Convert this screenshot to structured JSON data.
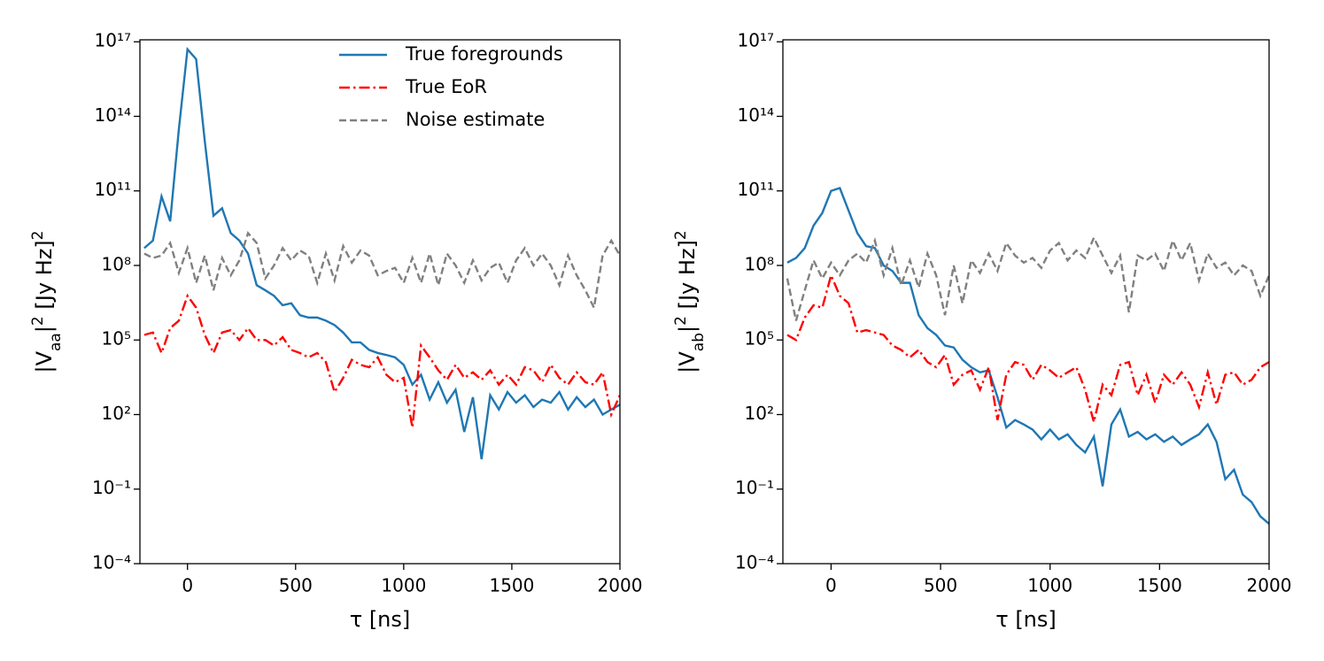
{
  "chart_data": [
    {
      "type": "line",
      "log_y": true,
      "legend": "upper right",
      "xlabel": "τ [ns]",
      "ylabel": [
        {
          "text": "|V"
        },
        {
          "sub": "aa"
        },
        {
          "text": "|"
        },
        {
          "sup": "2"
        },
        {
          "text": " [Jy Hz]"
        },
        {
          "sup": "2"
        }
      ],
      "xlim": [
        -220,
        2000
      ],
      "xticks": [
        0,
        500,
        1000,
        1500,
        2000
      ],
      "ylim": [
        0.0001,
        1.2e+17
      ],
      "yticks": [
        {
          "value": 0.0001,
          "label": "10⁻⁴"
        },
        {
          "value": 0.1,
          "label": "10⁻¹"
        },
        {
          "value": 100,
          "label": "10²"
        },
        {
          "value": 100000,
          "label": "10⁵"
        },
        {
          "value": 100000000.0,
          "label": "10⁸"
        },
        {
          "value": 100000000000.0,
          "label": "10¹¹"
        },
        {
          "value": 100000000000000.0,
          "label": "10¹⁴"
        },
        {
          "value": 1e+17,
          "label": "10¹⁷"
        }
      ],
      "x": [
        -200,
        -160,
        -120,
        -80,
        -40,
        0,
        40,
        80,
        120,
        160,
        200,
        240,
        280,
        320,
        360,
        400,
        440,
        480,
        520,
        560,
        600,
        640,
        680,
        720,
        760,
        800,
        840,
        880,
        920,
        960,
        1000,
        1040,
        1080,
        1120,
        1160,
        1200,
        1240,
        1280,
        1320,
        1360,
        1400,
        1440,
        1480,
        1520,
        1560,
        1600,
        1640,
        1680,
        1720,
        1760,
        1800,
        1840,
        1880,
        1920,
        1960,
        2000
      ],
      "series": [
        {
          "name": "True foregrounds",
          "color": "#1f77b4",
          "dash": "solid",
          "values": [
            500000000.0,
            1000000000.0,
            60000000000.0,
            6000000000.0,
            30000000000000.0,
            5e+16,
            2e+16,
            10000000000000.0,
            10000000000.0,
            20000000000.0,
            2000000000.0,
            1000000000.0,
            300000000.0,
            16000000.0,
            10000000.0,
            6000000.0,
            2500000.0,
            3000000.0,
            1000000.0,
            800000.0,
            800000.0,
            600000.0,
            400000.0,
            200000.0,
            80000.0,
            80000.0,
            40000.0,
            30000.0,
            25000.0,
            20000.0,
            10000.0,
            1600.0,
            4000.0,
            400,
            2000.0,
            300,
            1000.0,
            20,
            500,
            1.6,
            600,
            160,
            800,
            300,
            600,
            200,
            400,
            300,
            800,
            160,
            500,
            200,
            400,
            100,
            160,
            250
          ]
        },
        {
          "name": "True EoR",
          "color": "#ff0000",
          "dash": "dashdot",
          "values": [
            160000.0,
            200000.0,
            30000.0,
            300000.0,
            600000.0,
            6000000.0,
            2000000.0,
            160000.0,
            30000.0,
            200000.0,
            250000.0,
            100000.0,
            300000.0,
            100000.0,
            100000.0,
            60000.0,
            130000.0,
            40000.0,
            30000.0,
            20000.0,
            30000.0,
            13000.0,
            800,
            3000.0,
            16000.0,
            10000.0,
            8000.0,
            20000.0,
            4000.0,
            2000.0,
            3000.0,
            30,
            60000.0,
            20000.0,
            6000.0,
            2500.0,
            10000.0,
            3000.0,
            5000.0,
            2500.0,
            6000.0,
            1600.0,
            4000.0,
            1600.0,
            8000.0,
            6000.0,
            2000.0,
            10000.0,
            3000.0,
            1600.0,
            5000.0,
            2000.0,
            1600.0,
            5000.0,
            100,
            600
          ]
        },
        {
          "name": "Noise estimate",
          "color": "#808080",
          "dash": "dashed",
          "values": [
            300000000.0,
            200000000.0,
            250000000.0,
            800000000.0,
            50000000.0,
            500000000.0,
            20000000.0,
            250000000.0,
            10000000.0,
            200000000.0,
            40000000.0,
            160000000.0,
            2000000000.0,
            800000000.0,
            30000000.0,
            100000000.0,
            500000000.0,
            160000000.0,
            400000000.0,
            250000000.0,
            20000000.0,
            300000000.0,
            25000000.0,
            600000000.0,
            130000000.0,
            400000000.0,
            250000000.0,
            40000000.0,
            60000000.0,
            80000000.0,
            20000000.0,
            200000000.0,
            20000000.0,
            300000000.0,
            16000000.0,
            300000000.0,
            100000000.0,
            20000000.0,
            160000000.0,
            25000000.0,
            80000000.0,
            130000000.0,
            20000000.0,
            160000000.0,
            500000000.0,
            100000000.0,
            300000000.0,
            100000000.0,
            16000000.0,
            250000000.0,
            40000000.0,
            10000000.0,
            2000000.0,
            250000000.0,
            1000000000.0,
            250000000.0
          ]
        }
      ]
    },
    {
      "type": "line",
      "log_y": true,
      "xlabel": "τ [ns]",
      "ylabel": [
        {
          "text": "|V"
        },
        {
          "sub": "ab"
        },
        {
          "text": "|"
        },
        {
          "sup": "2"
        },
        {
          "text": " [Jy Hz]"
        },
        {
          "sup": "2"
        }
      ],
      "xlim": [
        -220,
        2000
      ],
      "xticks": [
        0,
        500,
        1000,
        1500,
        2000
      ],
      "ylim": [
        0.0001,
        1.2e+17
      ],
      "yticks": [
        {
          "value": 0.0001,
          "label": "10⁻⁴"
        },
        {
          "value": 0.1,
          "label": "10⁻¹"
        },
        {
          "value": 100,
          "label": "10²"
        },
        {
          "value": 100000,
          "label": "10⁵"
        },
        {
          "value": 100000000.0,
          "label": "10⁸"
        },
        {
          "value": 100000000000.0,
          "label": "10¹¹"
        },
        {
          "value": 100000000000000.0,
          "label": "10¹⁴"
        },
        {
          "value": 1e+17,
          "label": "10¹⁷"
        }
      ],
      "x": [
        -200,
        -160,
        -120,
        -80,
        -40,
        0,
        40,
        80,
        120,
        160,
        200,
        240,
        280,
        320,
        360,
        400,
        440,
        480,
        520,
        560,
        600,
        640,
        680,
        720,
        760,
        800,
        840,
        880,
        920,
        960,
        1000,
        1040,
        1080,
        1120,
        1160,
        1200,
        1240,
        1280,
        1320,
        1360,
        1400,
        1440,
        1480,
        1520,
        1560,
        1600,
        1640,
        1680,
        1720,
        1760,
        1800,
        1840,
        1880,
        1920,
        1960,
        2000
      ],
      "series": [
        {
          "color": "#1f77b4",
          "dash": "solid",
          "values": [
            130000000.0,
            200000000.0,
            500000000.0,
            4000000000.0,
            13000000000.0,
            100000000000.0,
            130000000000.0,
            16000000000.0,
            2000000000.0,
            600000000.0,
            500000000.0,
            100000000.0,
            60000000.0,
            20000000.0,
            20000000.0,
            1000000.0,
            300000.0,
            160000.0,
            60000.0,
            50000.0,
            16000.0,
            8000.0,
            5000.0,
            6000.0,
            500,
            30,
            60,
            40,
            25,
            10,
            25,
            10,
            16,
            6,
            3,
            13,
            0.13,
            40,
            160,
            13,
            20,
            10,
            16,
            8,
            13,
            6,
            10,
            16,
            40,
            8,
            0.25,
            0.6,
            0.06,
            0.03,
            0.008,
            0.004
          ]
        },
        {
          "color": "#ff0000",
          "dash": "dashdot",
          "values": [
            160000.0,
            100000.0,
            800000.0,
            2500000.0,
            2000000.0,
            40000000.0,
            6000000.0,
            3000000.0,
            200000.0,
            250000.0,
            200000.0,
            160000.0,
            60000.0,
            40000.0,
            20000.0,
            40000.0,
            13000.0,
            8000.0,
            25000.0,
            1600.0,
            4000.0,
            6000.0,
            1000.0,
            8000.0,
            60,
            4000.0,
            13000.0,
            10000.0,
            2500.0,
            10000.0,
            6000.0,
            3000.0,
            5000.0,
            8000.0,
            1000.0,
            50,
            1600.0,
            600,
            10000.0,
            13000.0,
            600,
            4000.0,
            300,
            4000.0,
            1600.0,
            5000.0,
            1600.0,
            200,
            5000.0,
            250,
            4000.0,
            5000.0,
            1600.0,
            2500.0,
            8000.0,
            13000.0
          ]
        },
        {
          "color": "#808080",
          "dash": "dashed",
          "values": [
            30000000.0,
            600000.0,
            10000000.0,
            160000000.0,
            30000000.0,
            130000000.0,
            40000000.0,
            160000000.0,
            300000000.0,
            130000000.0,
            1000000000.0,
            40000000.0,
            500000000.0,
            16000000.0,
            160000000.0,
            13000000.0,
            300000000.0,
            40000000.0,
            1000000.0,
            100000000.0,
            3000000.0,
            160000000.0,
            50000000.0,
            300000000.0,
            60000000.0,
            800000000.0,
            250000000.0,
            130000000.0,
            200000000.0,
            80000000.0,
            400000000.0,
            800000000.0,
            160000000.0,
            400000000.0,
            200000000.0,
            1300000000.0,
            250000000.0,
            50000000.0,
            250000000.0,
            1300000.0,
            250000000.0,
            160000000.0,
            300000000.0,
            60000000.0,
            1000000000.0,
            160000000.0,
            800000000.0,
            25000000.0,
            300000000.0,
            80000000.0,
            130000000.0,
            40000000.0,
            100000000.0,
            60000000.0,
            6000000.0,
            40000000.0
          ]
        }
      ]
    }
  ]
}
